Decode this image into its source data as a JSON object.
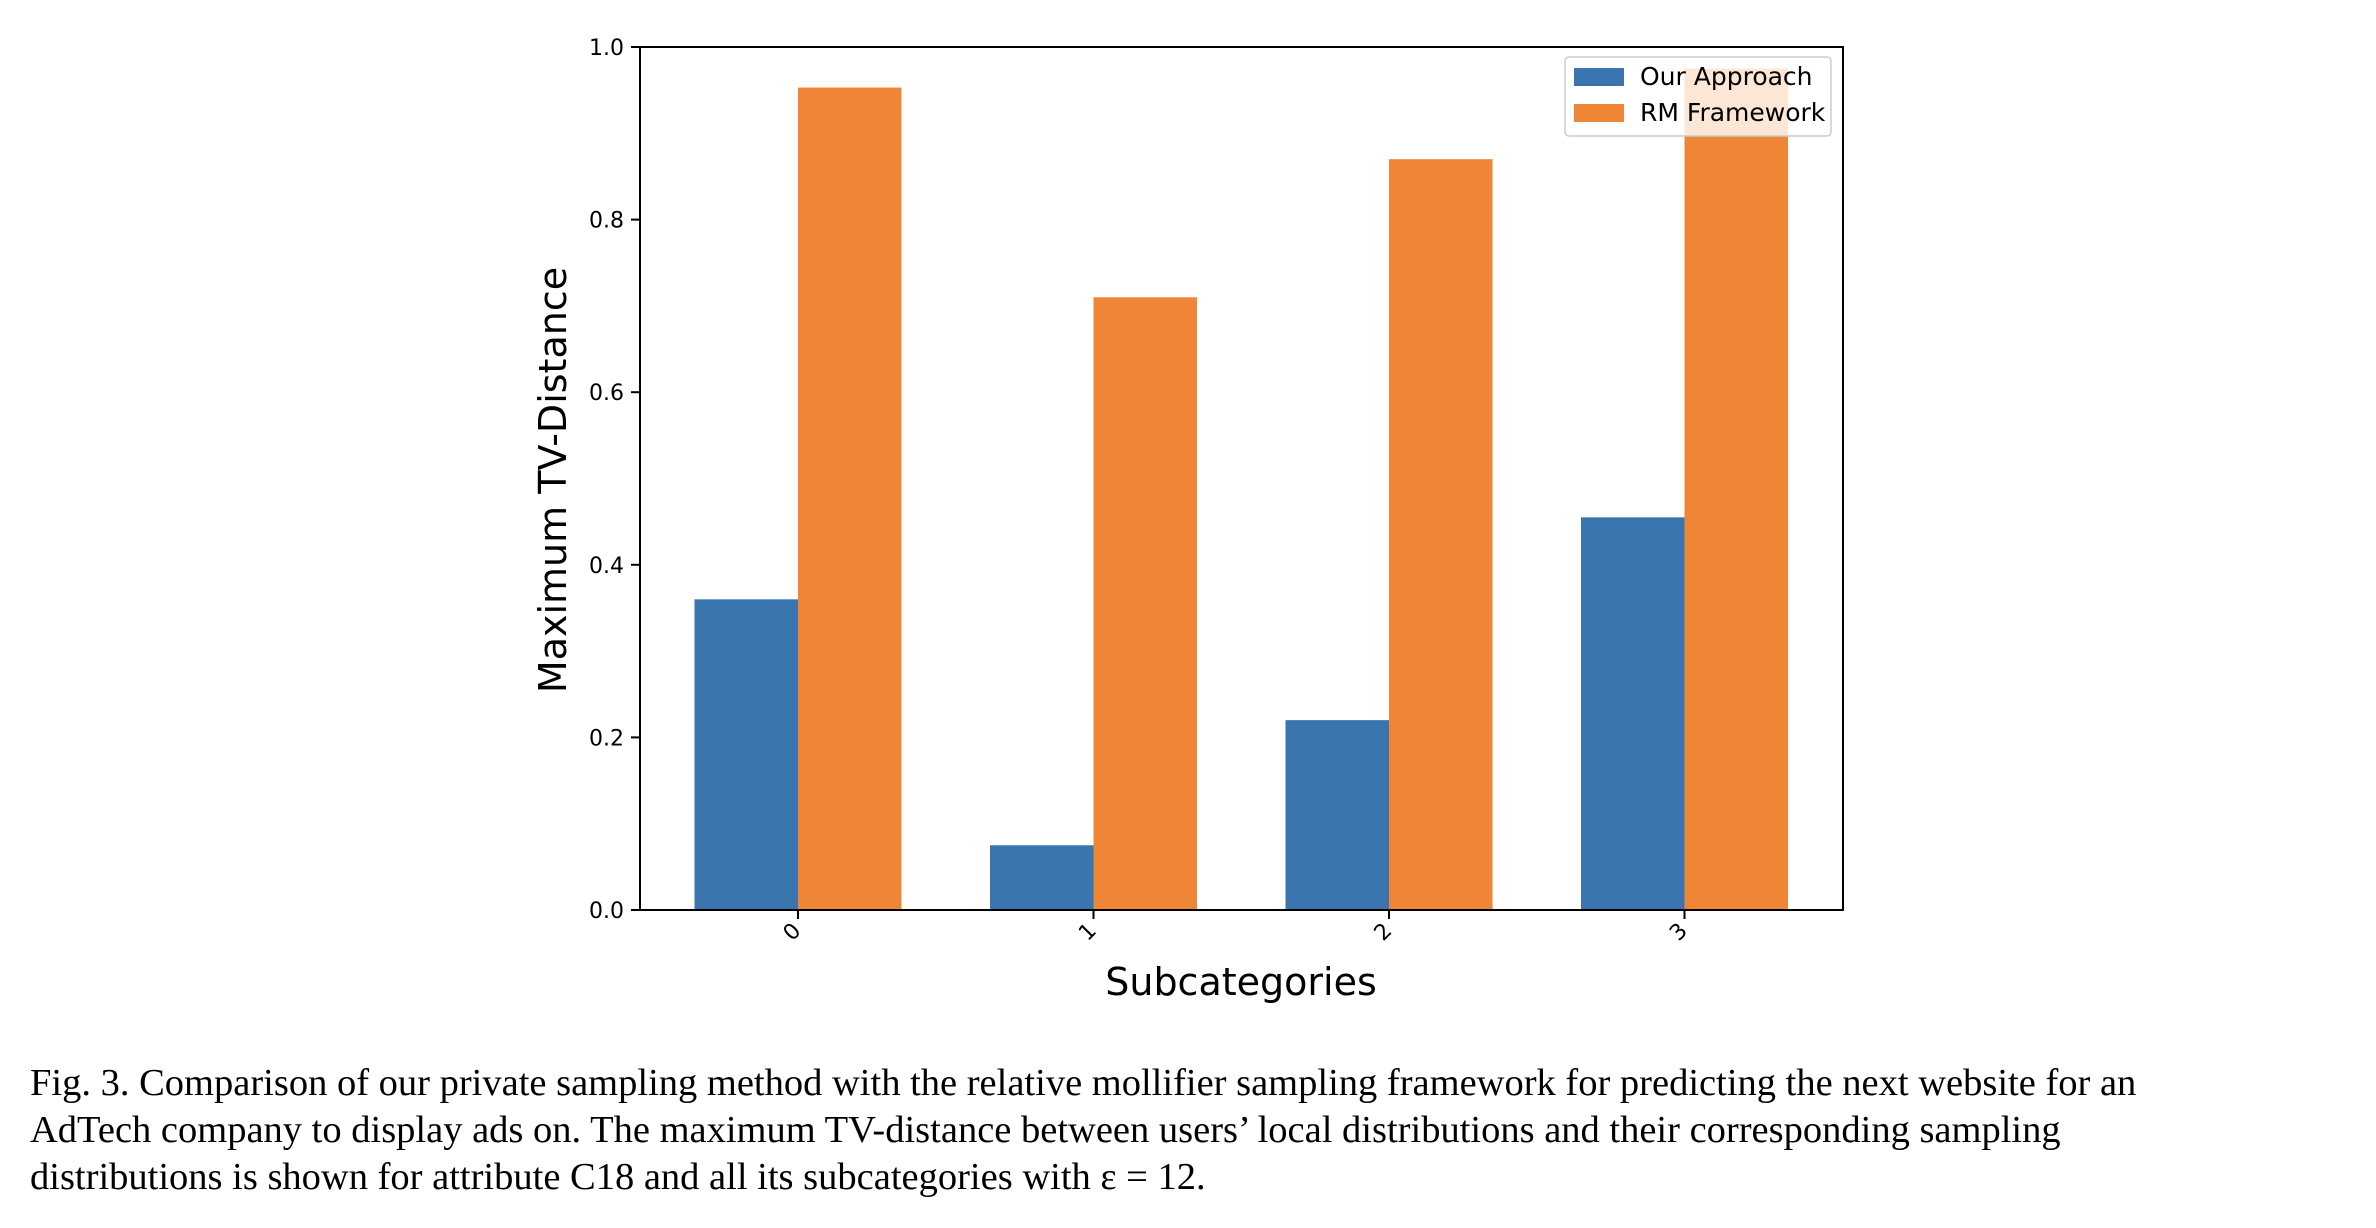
{
  "chart_data": {
    "type": "bar",
    "categories": [
      "0",
      "1",
      "2",
      "3"
    ],
    "series": [
      {
        "name": "Our Approach",
        "values": [
          0.36,
          0.075,
          0.22,
          0.455
        ],
        "color": "#3b75af"
      },
      {
        "name": "RM Framework",
        "values": [
          0.953,
          0.71,
          0.87,
          0.975
        ],
        "color": "#ef8636"
      }
    ],
    "xlabel": "Subcategories",
    "ylabel": "Maximum TV-Distance",
    "ylim": [
      0,
      1.0
    ],
    "yticks": [
      "0.0",
      "0.2",
      "0.4",
      "0.6",
      "0.8",
      "1.0"
    ],
    "ytick_values": [
      0,
      0.2,
      0.4,
      0.6,
      0.8,
      1.0
    ],
    "xtick_rotation_deg": 45,
    "grid": false,
    "legend_position": "top-right"
  },
  "caption": {
    "lines": [
      "Fig. 3. Comparison of our private sampling method with the relative mollifier sampling framework for predicting the next website for an",
      "AdTech company to display ads on. The maximum TV-distance between users’ local distributions and their corresponding sampling",
      "distributions is shown for attribute C18 and all its subcategories with ε = 12."
    ]
  }
}
